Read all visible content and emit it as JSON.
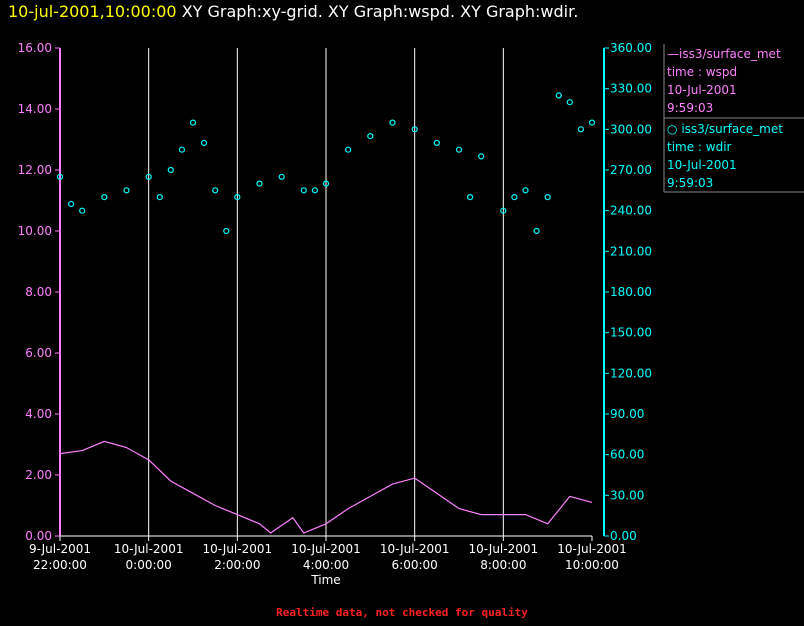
{
  "header": {
    "timestamp": "10-jul-2001,10:00:00",
    "graphs": "XY Graph:xy-grid.  XY Graph:wspd.  XY Graph:wdir."
  },
  "colors": {
    "wspd": "#ff80ff",
    "wdir": "#00ffff",
    "grid": "#ffffff",
    "title_time": "#ffff00",
    "footer": "#ff2020"
  },
  "legend": [
    {
      "marker": "line",
      "source": "iss3/surface_met",
      "field": "time : wspd",
      "date": "10-Jul-2001",
      "time": "9:59:03"
    },
    {
      "marker": "circle",
      "source": "iss3/surface_met",
      "field": "time : wdir",
      "date": "10-Jul-2001",
      "time": "9:59:03"
    }
  ],
  "footer": "Realtime data, not checked for quality",
  "chart_data": {
    "type": "scatter",
    "xlabel": "Time",
    "xlim": [
      "2001-07-09 22:00",
      "2001-07-10 10:00"
    ],
    "x_ticks": [
      {
        "date": "9-Jul-2001",
        "time": "22:00:00",
        "x": "2001-07-09 22:00"
      },
      {
        "date": "10-Jul-2001",
        "time": "0:00:00",
        "x": "2001-07-10 00:00"
      },
      {
        "date": "10-Jul-2001",
        "time": "2:00:00",
        "x": "2001-07-10 02:00"
      },
      {
        "date": "10-Jul-2001",
        "time": "4:00:00",
        "x": "2001-07-10 04:00"
      },
      {
        "date": "10-Jul-2001",
        "time": "6:00:00",
        "x": "2001-07-10 06:00"
      },
      {
        "date": "10-Jul-2001",
        "time": "8:00:00",
        "x": "2001-07-10 08:00"
      },
      {
        "date": "10-Jul-2001",
        "time": "10:00:00",
        "x": "2001-07-10 10:00"
      }
    ],
    "y_left": {
      "ticks": [
        "0.00",
        "2.00",
        "4.00",
        "6.00",
        "8.00",
        "10.00",
        "12.00",
        "14.00",
        "16.00"
      ],
      "lim": [
        0,
        16
      ]
    },
    "y_right": {
      "ticks": [
        "0.00",
        "30.00",
        "60.00",
        "90.00",
        "120.00",
        "150.00",
        "180.00",
        "210.00",
        "240.00",
        "270.00",
        "300.00",
        "330.00",
        "360.00"
      ],
      "lim": [
        0,
        360
      ]
    },
    "grid": "vertical lines at x ticks",
    "series": [
      {
        "name": "iss3/surface_met time : wspd",
        "axis": "left",
        "mark": "line",
        "x": [
          "2001-07-09 22:00",
          "2001-07-09 22:30",
          "2001-07-09 23:00",
          "2001-07-09 23:30",
          "2001-07-10 00:00",
          "2001-07-10 00:30",
          "2001-07-10 01:00",
          "2001-07-10 01:30",
          "2001-07-10 02:00",
          "2001-07-10 02:30",
          "2001-07-10 02:45",
          "2001-07-10 03:15",
          "2001-07-10 03:30",
          "2001-07-10 04:00",
          "2001-07-10 04:30",
          "2001-07-10 05:00",
          "2001-07-10 05:30",
          "2001-07-10 06:00",
          "2001-07-10 06:30",
          "2001-07-10 07:00",
          "2001-07-10 07:30",
          "2001-07-10 08:00",
          "2001-07-10 08:30",
          "2001-07-10 09:00",
          "2001-07-10 09:30",
          "2001-07-10 10:00"
        ],
        "y": [
          2.7,
          2.8,
          3.1,
          2.9,
          2.5,
          1.8,
          1.4,
          1.0,
          0.7,
          0.4,
          0.1,
          0.6,
          0.1,
          0.4,
          0.9,
          1.3,
          1.7,
          1.9,
          1.4,
          0.9,
          0.7,
          0.7,
          0.7,
          0.4,
          1.3,
          1.1
        ]
      },
      {
        "name": "iss3/surface_met time : wdir",
        "axis": "right",
        "mark": "circle",
        "x": [
          "2001-07-09 22:00",
          "2001-07-09 22:15",
          "2001-07-09 22:30",
          "2001-07-09 23:00",
          "2001-07-09 23:30",
          "2001-07-10 00:00",
          "2001-07-10 00:15",
          "2001-07-10 00:30",
          "2001-07-10 00:45",
          "2001-07-10 01:00",
          "2001-07-10 01:15",
          "2001-07-10 01:30",
          "2001-07-10 01:45",
          "2001-07-10 02:00",
          "2001-07-10 02:30",
          "2001-07-10 03:00",
          "2001-07-10 03:30",
          "2001-07-10 03:45",
          "2001-07-10 04:00",
          "2001-07-10 04:30",
          "2001-07-10 05:00",
          "2001-07-10 05:30",
          "2001-07-10 06:00",
          "2001-07-10 06:30",
          "2001-07-10 07:00",
          "2001-07-10 07:15",
          "2001-07-10 07:30",
          "2001-07-10 08:00",
          "2001-07-10 08:15",
          "2001-07-10 08:30",
          "2001-07-10 08:45",
          "2001-07-10 09:00",
          "2001-07-10 09:15",
          "2001-07-10 09:30",
          "2001-07-10 09:45",
          "2001-07-10 10:00"
        ],
        "y": [
          265,
          245,
          240,
          250,
          255,
          265,
          250,
          270,
          285,
          305,
          290,
          255,
          225,
          250,
          260,
          265,
          255,
          255,
          260,
          285,
          295,
          305,
          300,
          290,
          285,
          250,
          280,
          240,
          250,
          255,
          225,
          250,
          325,
          320,
          300,
          305
        ]
      }
    ]
  }
}
